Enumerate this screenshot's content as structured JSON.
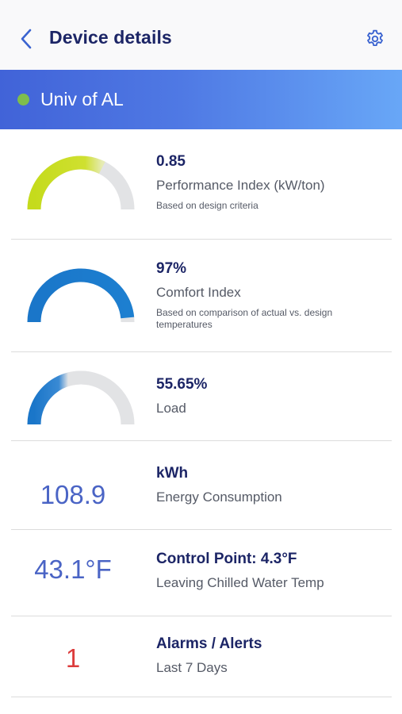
{
  "header": {
    "title": "Device details",
    "back_icon": "chevron-left-icon",
    "settings_icon": "gear-icon"
  },
  "banner": {
    "site_name": "Univ of AL",
    "status_color": "#7ebd4c"
  },
  "metrics": [
    {
      "value": "0.85",
      "label": "Performance Index (kW/ton)",
      "sublabel": "Based on design criteria",
      "gauge_fraction": 0.65,
      "gauge_color": "#c5db1c"
    },
    {
      "value": "97%",
      "label": "Comfort Index",
      "sublabel": "Based on comparison of actual vs. design temperatures",
      "gauge_fraction": 0.97,
      "gauge_color": "#1a76c9"
    },
    {
      "value": "55.65%",
      "label": "Load",
      "sublabel": "",
      "gauge_fraction": 0.5565,
      "gauge_color": "#1a76c9"
    }
  ],
  "readouts": [
    {
      "display": "108.9",
      "title": "kWh",
      "label": "Energy Consumption"
    },
    {
      "display": "43.1°F",
      "title": "Control Point: 4.3°F",
      "label": "Leaving Chilled Water Temp"
    },
    {
      "display": "1",
      "title": "Alarms / Alerts",
      "label": "Last 7 Days"
    }
  ],
  "colors": {
    "gauge_track": "#e2e3e5",
    "value_blue": "#4a64c5",
    "alert_red": "#dc3c3c"
  }
}
